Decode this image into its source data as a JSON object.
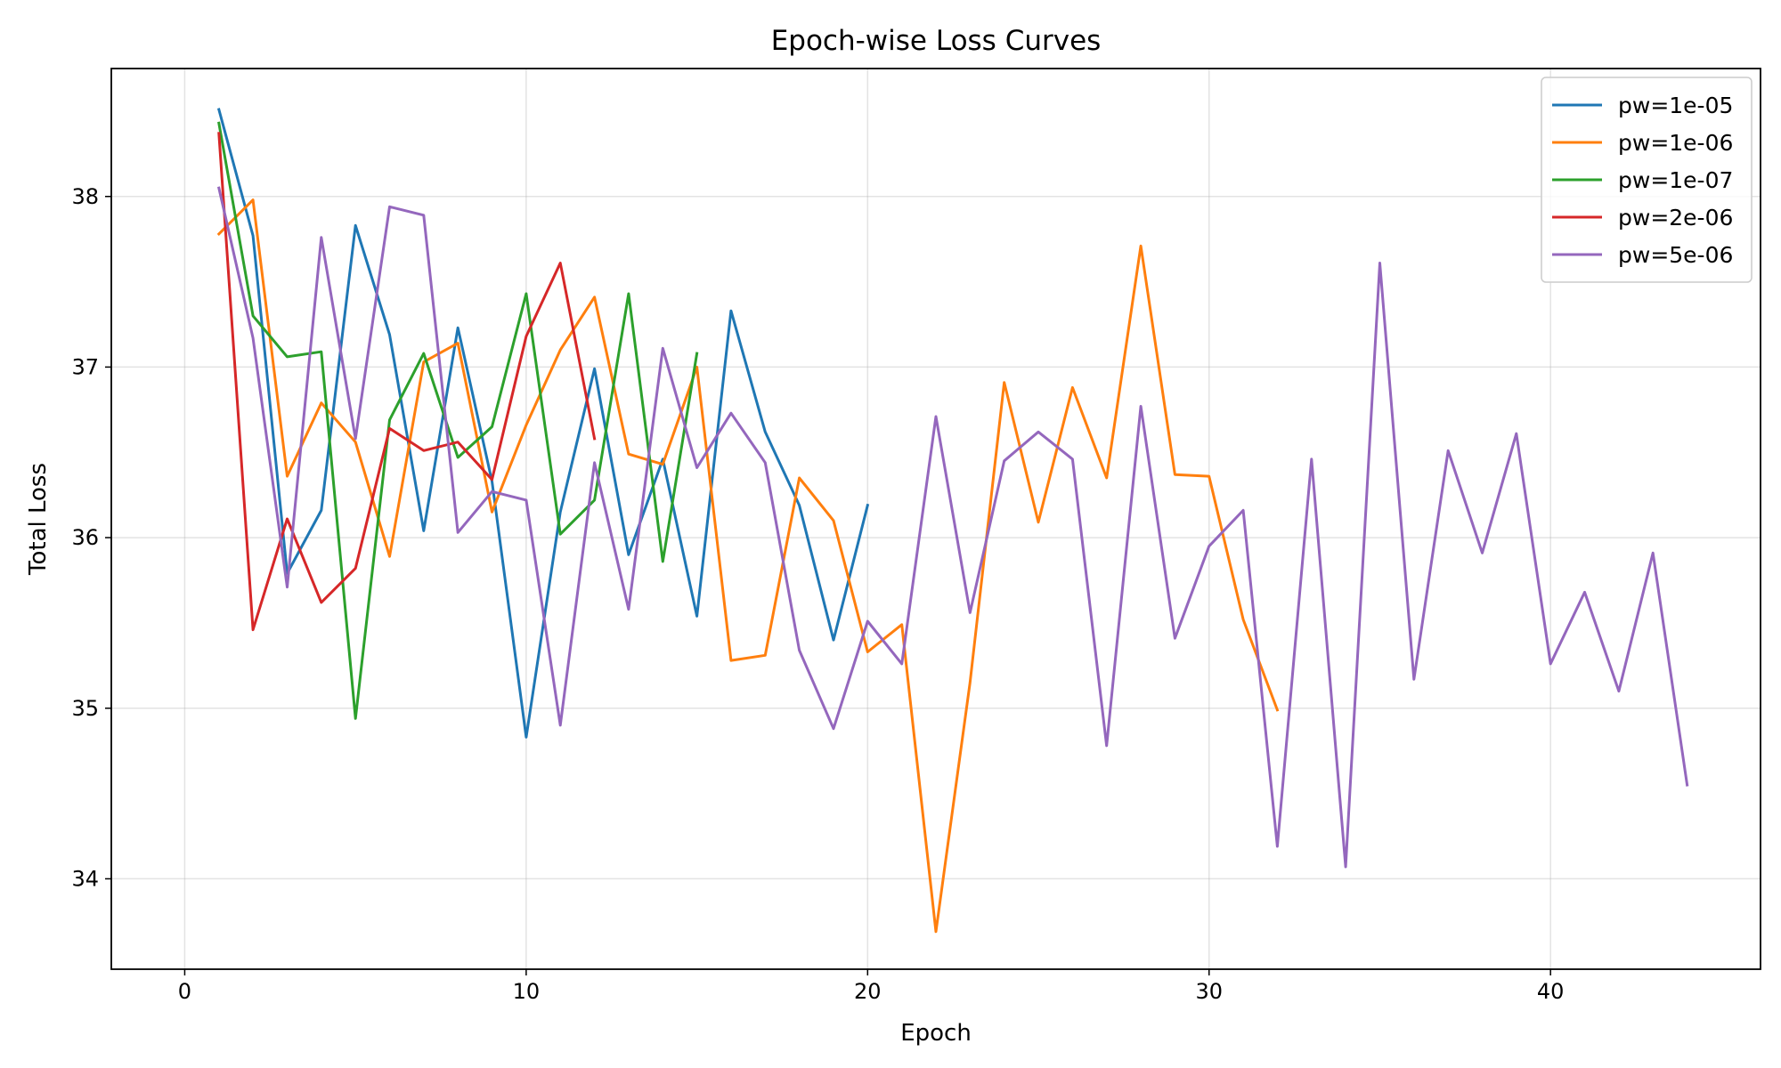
{
  "chart_data": {
    "type": "line",
    "title": "Epoch-wise Loss Curves",
    "xlabel": "Epoch",
    "ylabel": "Total Loss",
    "xlim": [
      -2.15,
      46.15
    ],
    "ylim": [
      33.47,
      38.75
    ],
    "xticks": [
      0,
      10,
      20,
      30,
      40
    ],
    "yticks": [
      34,
      35,
      36,
      37,
      38
    ],
    "grid": true,
    "legend_position": "top-right",
    "series": [
      {
        "name": "pw=1e-05",
        "color": "#1f77b4",
        "x": [
          1,
          2,
          3,
          4,
          5,
          6,
          7,
          8,
          9,
          10,
          11,
          12,
          13,
          14,
          15,
          16,
          17,
          18,
          19,
          20
        ],
        "y": [
          38.51,
          37.77,
          35.79,
          36.16,
          37.83,
          37.19,
          36.04,
          37.23,
          36.33,
          34.83,
          36.15,
          36.99,
          35.9,
          36.46,
          35.54,
          37.33,
          36.62,
          36.19,
          35.4,
          36.19
        ]
      },
      {
        "name": "pw=1e-06",
        "color": "#ff7f0e",
        "x": [
          1,
          2,
          3,
          4,
          5,
          6,
          7,
          8,
          9,
          10,
          11,
          12,
          13,
          14,
          15,
          16,
          17,
          18,
          19,
          20,
          21,
          22,
          23,
          24,
          25,
          26,
          27,
          28,
          29,
          30,
          31,
          32
        ],
        "y": [
          37.78,
          37.98,
          36.36,
          36.79,
          36.56,
          35.89,
          37.03,
          37.14,
          36.15,
          36.66,
          37.1,
          37.41,
          36.49,
          36.43,
          37.0,
          35.28,
          35.31,
          36.35,
          36.1,
          35.33,
          35.49,
          33.69,
          35.15,
          36.91,
          36.09,
          36.88,
          36.35,
          37.71,
          36.37,
          36.36,
          35.52,
          34.99
        ]
      },
      {
        "name": "pw=1e-07",
        "color": "#2ca02c",
        "x": [
          1,
          2,
          3,
          4,
          5,
          6,
          7,
          8,
          9,
          10,
          11,
          12,
          13,
          14,
          15
        ],
        "y": [
          38.43,
          37.3,
          37.06,
          37.09,
          34.94,
          36.69,
          37.08,
          36.47,
          36.65,
          37.43,
          36.02,
          36.22,
          37.43,
          35.86,
          37.08
        ]
      },
      {
        "name": "pw=2e-06",
        "color": "#d62728",
        "x": [
          1,
          2,
          3,
          4,
          5,
          6,
          7,
          8,
          9,
          10,
          11,
          12
        ],
        "y": [
          38.37,
          35.46,
          36.11,
          35.62,
          35.82,
          36.64,
          36.51,
          36.56,
          36.34,
          37.18,
          37.61,
          36.58
        ]
      },
      {
        "name": "pw=5e-06",
        "color": "#9467bd",
        "x": [
          1,
          2,
          3,
          4,
          5,
          6,
          7,
          8,
          9,
          10,
          11,
          12,
          13,
          14,
          15,
          16,
          17,
          18,
          19,
          20,
          21,
          22,
          23,
          24,
          25,
          26,
          27,
          28,
          29,
          30,
          31,
          32,
          33,
          34,
          35,
          36,
          37,
          38,
          39,
          40,
          41,
          42,
          43,
          44
        ],
        "y": [
          38.05,
          37.17,
          35.71,
          37.76,
          36.58,
          37.94,
          37.89,
          36.03,
          36.27,
          36.22,
          34.9,
          36.44,
          35.58,
          37.11,
          36.41,
          36.73,
          36.44,
          35.34,
          34.88,
          35.51,
          35.26,
          36.71,
          35.56,
          36.45,
          36.62,
          36.46,
          34.78,
          36.77,
          35.41,
          35.95,
          36.16,
          34.19,
          36.46,
          34.07,
          37.61,
          35.17,
          36.51,
          35.91,
          36.61,
          35.26,
          35.68,
          35.1,
          35.91,
          34.55
        ]
      }
    ]
  }
}
